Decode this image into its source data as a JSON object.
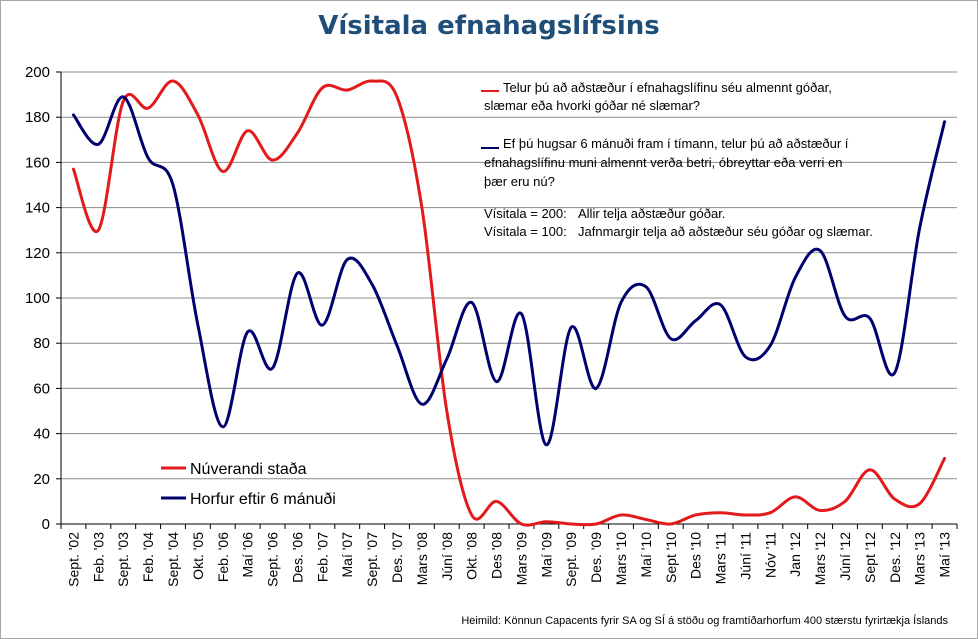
{
  "chart_data": {
    "type": "line",
    "title": "Vísitala efnahagslífsins",
    "xlabel": "",
    "ylabel": "",
    "ylim": [
      0,
      200
    ],
    "yticks": [
      0,
      20,
      40,
      60,
      80,
      100,
      120,
      140,
      160,
      180,
      200
    ],
    "grid": "horizontal",
    "legend_position": "bottom-left",
    "categories": [
      "Sept. '02",
      "Feb. '03",
      "Sept. '03",
      "Feb. '04",
      "Sept. '04",
      "Okt. '05",
      "Feb. '06",
      "Maí '06",
      "Sept. '06",
      "Des. '06",
      "Feb. '07",
      "Maí '07",
      "Sept. '07",
      "Des. '07",
      "Mars '08",
      "Júní '08",
      "Okt. '08",
      "Des '08",
      "Mars '09",
      "Maí '09",
      "Sept. '09",
      "Des. '09",
      "Mars '10",
      "Maí '10",
      "Sept '10",
      "Des '10",
      "Mars '11",
      "Júní '11",
      "Nóv '11",
      "Jan '12",
      "Mars '12",
      "Júní '12",
      "Sept '12",
      "Des. '12",
      "Mars '13",
      "Maí '13"
    ],
    "x_labels": [
      "Sept. '02",
      "Feb. '03",
      "Sept. '03",
      "Feb. '04",
      "Sept. '04",
      "Okt. '05",
      "Feb. '06",
      "Maí '06",
      "Sept. '06",
      "Des. '06",
      "Feb. '07",
      "Maí '07",
      "Sept. '07",
      "Des. '07",
      "Mars '08",
      "Júní '08",
      "Okt. '08",
      "Des '08",
      "Mars '09",
      "Maí '09",
      "Sept. '09",
      "Des. '09",
      "Mars '10",
      "Maí '10",
      "Sept '10",
      "Des '10",
      "Mars '11",
      "Júní '11",
      "Nóv '11",
      "Jan '12",
      "Mars '12",
      "Júní '12",
      "Sept '12",
      "Des. '12",
      "Mars '13",
      "Maí '13"
    ],
    "series": [
      {
        "name": "Núverandi staða",
        "color": "#e31a1c",
        "values": [
          157,
          130,
          187,
          184,
          196,
          181,
          156,
          174,
          161,
          173,
          193,
          192,
          196,
          189,
          140,
          50,
          4,
          10,
          0,
          1,
          0,
          0,
          4,
          2,
          0,
          4,
          5,
          4,
          5,
          12,
          6,
          10,
          24,
          11,
          9,
          29
        ]
      },
      {
        "name": "Horfur eftir 6 mánuði",
        "color": "#00006e",
        "values": [
          181,
          168,
          189,
          162,
          150,
          88,
          43,
          85,
          69,
          111,
          88,
          117,
          106,
          79,
          53,
          73,
          98,
          63,
          93,
          35,
          87,
          60,
          98,
          105,
          82,
          90,
          97,
          74,
          79,
          109,
          121,
          92,
          91,
          67,
          131,
          178
        ]
      }
    ],
    "annotations": {
      "q1": [
        "Telur þú að aðstæður í efnahagslífinu séu almennt góðar,",
        "slæmar eða hvorki góðar né slæmar?"
      ],
      "q2": [
        "Ef þú hugsar 6 mánuði fram í tímann, telur þú að aðstæður í",
        "efnahagslífinu muni almennt verða betri, óbreyttar eða verri en",
        "þær eru nú?"
      ],
      "idx200": [
        "Vísitala = 200:",
        "Allir telja aðstæður góðar."
      ],
      "idx100": [
        "Vísitala = 100:",
        "Jafnmargir telja að aðstæður séu góðar og slæmar."
      ]
    },
    "source": "Heimild: Könnun Capacents fyrir SA og SÍ á stöðu og framtíðarhorfum 400 stærstu fyrirtækja Íslands"
  }
}
